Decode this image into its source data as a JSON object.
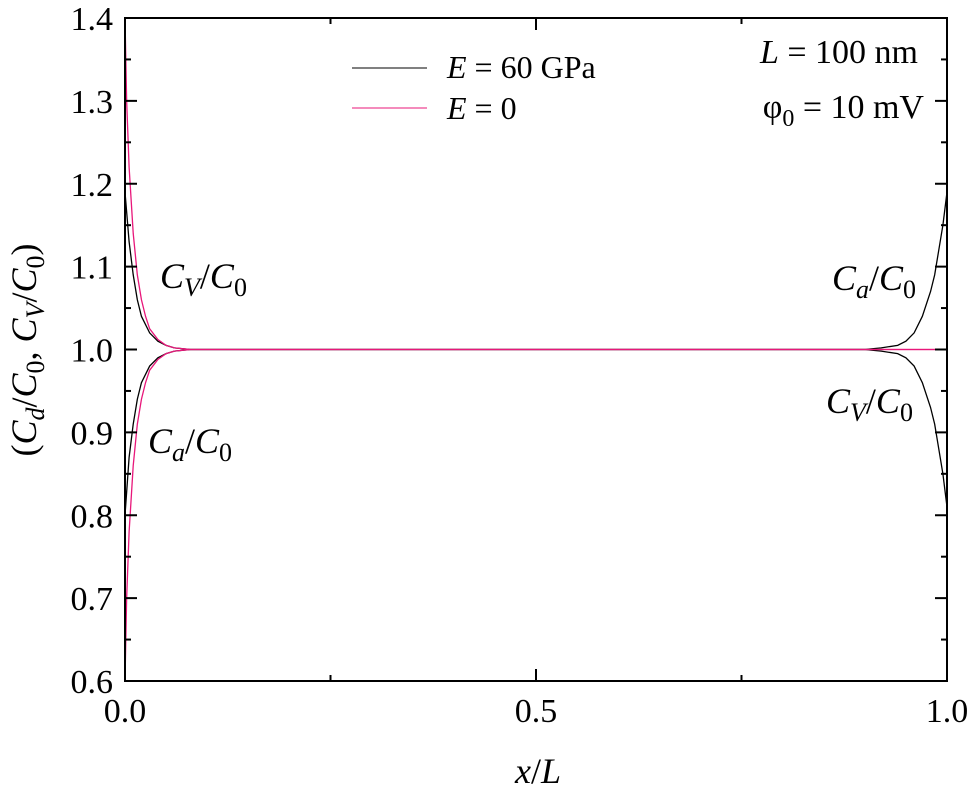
{
  "chart_data": {
    "type": "line",
    "xlim": [
      0,
      1
    ],
    "ylim": [
      0.6,
      1.4
    ],
    "x_ticks": [
      {
        "value": 0.0,
        "label": "0.0"
      },
      {
        "value": 0.5,
        "label": "0.5"
      },
      {
        "value": 1.0,
        "label": "1.0"
      }
    ],
    "y_ticks": [
      {
        "value": 0.6,
        "label": "0.6"
      },
      {
        "value": 0.7,
        "label": "0.7"
      },
      {
        "value": 0.8,
        "label": "0.8"
      },
      {
        "value": 0.9,
        "label": "0.9"
      },
      {
        "value": 1.0,
        "label": "1.0"
      },
      {
        "value": 1.1,
        "label": "1.1"
      },
      {
        "value": 1.2,
        "label": "1.2"
      },
      {
        "value": 1.3,
        "label": "1.3"
      },
      {
        "value": 1.4,
        "label": "1.4"
      }
    ],
    "xlabel": {
      "var": "x",
      "sep": "/",
      "den": "L"
    },
    "ylabel": {
      "parts": [
        "(",
        "C",
        "d",
        "/",
        "C",
        "0",
        ", ",
        "C",
        "V",
        "/",
        "C",
        "0",
        ")"
      ]
    },
    "legend": {
      "placement": "top-center",
      "entries": [
        {
          "var": "E",
          "rest": " = 60 GPa",
          "color": "#000000"
        },
        {
          "var": "E",
          "rest": " = 0",
          "color": "#e8177a"
        }
      ]
    },
    "info": {
      "line1": {
        "var": "L",
        "rest": " = 100 nm"
      },
      "line2": {
        "sym": "φ",
        "sub": "0",
        "rest": " = 10 mV"
      }
    },
    "annotations": [
      {
        "id": "cv-left",
        "C": "C",
        "sub": "V",
        "sep": "/",
        "C0": "C",
        "zero": "0"
      },
      {
        "id": "ca-left",
        "C": "C",
        "sub": "a",
        "sep": "/",
        "C0": "C",
        "zero": "0"
      },
      {
        "id": "ca-right",
        "C": "C",
        "sub": "a",
        "sep": "/",
        "C0": "C",
        "zero": "0"
      },
      {
        "id": "cv-right",
        "C": "C",
        "sub": "V",
        "sep": "/",
        "C0": "C",
        "zero": "0"
      }
    ],
    "series": [
      {
        "name": "E = 60 GPa, Cv/C0",
        "color": "#000000",
        "x": [
          0,
          0.005,
          0.01,
          0.015,
          0.02,
          0.03,
          0.04,
          0.05,
          0.06,
          0.08,
          0.1,
          0.2,
          0.5,
          0.8,
          0.9,
          0.92,
          0.94,
          0.95,
          0.96,
          0.97,
          0.98,
          0.985,
          0.99,
          0.995,
          1.0
        ],
        "y": [
          1.19,
          1.13,
          1.09,
          1.06,
          1.04,
          1.02,
          1.01,
          1.005,
          1.002,
          1.0,
          1.0,
          1.0,
          1.0,
          1.0,
          1.0,
          0.998,
          0.995,
          0.99,
          0.98,
          0.96,
          0.93,
          0.91,
          0.88,
          0.85,
          0.81
        ]
      },
      {
        "name": "E = 60 GPa, Ca/C0",
        "color": "#000000",
        "x": [
          0,
          0.005,
          0.01,
          0.015,
          0.02,
          0.03,
          0.04,
          0.05,
          0.06,
          0.08,
          0.1,
          0.2,
          0.5,
          0.8,
          0.9,
          0.92,
          0.94,
          0.95,
          0.96,
          0.97,
          0.98,
          0.985,
          0.99,
          0.995,
          1.0
        ],
        "y": [
          0.8,
          0.87,
          0.91,
          0.94,
          0.96,
          0.98,
          0.99,
          0.995,
          0.998,
          1.0,
          1.0,
          1.0,
          1.0,
          1.0,
          1.0,
          1.002,
          1.005,
          1.01,
          1.02,
          1.04,
          1.07,
          1.09,
          1.12,
          1.15,
          1.19
        ]
      },
      {
        "name": "E = 0, Cv/C0",
        "color": "#e8177a",
        "x": [
          0,
          0.002,
          0.005,
          0.01,
          0.015,
          0.02,
          0.025,
          0.03,
          0.04,
          0.05,
          0.06,
          0.08,
          0.1,
          0.2,
          0.5,
          0.8,
          1.0
        ],
        "y": [
          1.4,
          1.3,
          1.22,
          1.14,
          1.09,
          1.06,
          1.04,
          1.025,
          1.012,
          1.005,
          1.002,
          1.0,
          1.0,
          1.0,
          1.0,
          1.0,
          1.0
        ]
      },
      {
        "name": "E = 0, Ca/C0",
        "color": "#e8177a",
        "x": [
          0,
          0.002,
          0.005,
          0.01,
          0.015,
          0.02,
          0.025,
          0.03,
          0.04,
          0.05,
          0.06,
          0.08,
          0.1,
          0.2,
          0.5,
          0.8,
          1.0
        ],
        "y": [
          0.6,
          0.7,
          0.78,
          0.86,
          0.91,
          0.94,
          0.96,
          0.975,
          0.988,
          0.995,
          0.998,
          1.0,
          1.0,
          1.0,
          1.0,
          1.0,
          1.0
        ]
      }
    ]
  }
}
